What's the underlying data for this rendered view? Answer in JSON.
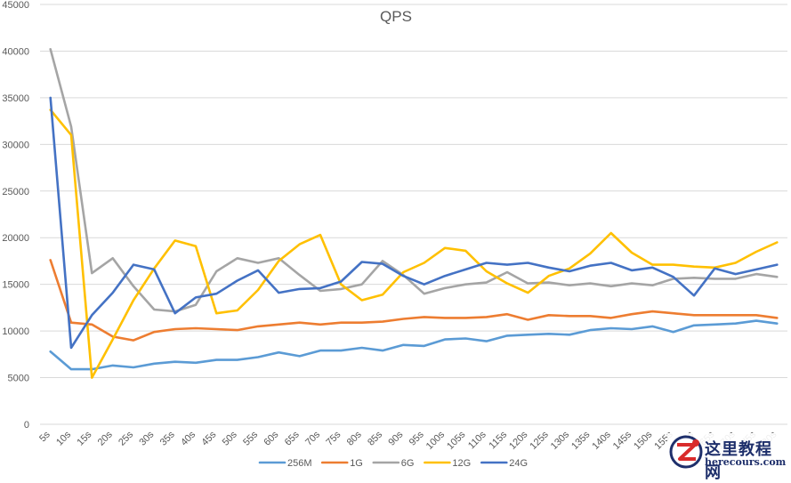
{
  "chart_data": {
    "type": "line",
    "title": "QPS",
    "xlabel": "",
    "ylabel": "",
    "ylim": [
      0,
      45000
    ],
    "yticks": [
      0,
      5000,
      10000,
      15000,
      20000,
      25000,
      30000,
      35000,
      40000,
      45000
    ],
    "ytick_labels": [
      "0",
      "5000",
      "10000",
      "15000",
      "20000",
      "25000",
      "30000",
      "35000",
      "40000",
      "45000"
    ],
    "categories": [
      "5s",
      "10s",
      "15s",
      "20s",
      "25s",
      "30s",
      "35s",
      "40s",
      "45s",
      "50s",
      "55s",
      "60s",
      "65s",
      "70s",
      "75s",
      "80s",
      "85s",
      "90s",
      "95s",
      "100s",
      "105s",
      "110s",
      "115s",
      "120s",
      "125s",
      "130s",
      "135s",
      "140s",
      "145s",
      "150s",
      "155s",
      "160s",
      "165s",
      "170s",
      "175s",
      "180s"
    ],
    "grid": "horizontal",
    "legend_position": "bottom",
    "series": [
      {
        "name": "256M",
        "color": "#5b9bd5",
        "values": [
          7800,
          5900,
          5900,
          6300,
          6100,
          6500,
          6700,
          6600,
          6900,
          6900,
          7200,
          7700,
          7300,
          7900,
          7900,
          8200,
          7900,
          8500,
          8400,
          9100,
          9200,
          8900,
          9500,
          9600,
          9700,
          9600,
          10100,
          10300,
          10200,
          10500,
          9900,
          10600,
          10700,
          10800,
          11100,
          10800
        ]
      },
      {
        "name": "1G",
        "color": "#ed7d31",
        "values": [
          17600,
          10900,
          10700,
          9400,
          9000,
          9900,
          10200,
          10300,
          10200,
          10100,
          10500,
          10700,
          10900,
          10700,
          10900,
          10900,
          11000,
          11300,
          11500,
          11400,
          11400,
          11500,
          11800,
          11200,
          11700,
          11600,
          11600,
          11400,
          11800,
          12100,
          11900,
          11700,
          11700,
          11700,
          11700,
          11400
        ]
      },
      {
        "name": "6G",
        "color": "#a5a5a5",
        "values": [
          40200,
          31900,
          16200,
          17800,
          14800,
          12300,
          12100,
          12800,
          16400,
          17800,
          17300,
          17800,
          16000,
          14300,
          14500,
          15000,
          17500,
          16000,
          14000,
          14600,
          15000,
          15200,
          16300,
          15100,
          15200,
          14900,
          15100,
          14800,
          15100,
          14900,
          15600,
          15700,
          15600,
          15600,
          16100,
          15800
        ]
      },
      {
        "name": "12G",
        "color": "#ffc000",
        "values": [
          33700,
          31000,
          5000,
          9100,
          13300,
          16700,
          19700,
          19100,
          11900,
          12200,
          14400,
          17500,
          19300,
          20300,
          15000,
          13300,
          13900,
          16300,
          17300,
          18900,
          18600,
          16400,
          15100,
          14100,
          15900,
          16700,
          18300,
          20500,
          18400,
          17100,
          17100,
          16900,
          16800,
          17300,
          18500,
          19500
        ]
      },
      {
        "name": "24G",
        "color": "#4472c4",
        "values": [
          35000,
          8200,
          11700,
          14100,
          17100,
          16600,
          11900,
          13600,
          14000,
          15400,
          16500,
          14100,
          14500,
          14600,
          15300,
          17400,
          17200,
          15900,
          15000,
          15900,
          16600,
          17300,
          17100,
          17300,
          16800,
          16400,
          17000,
          17300,
          16500,
          16800,
          15800,
          13800,
          16700,
          16100,
          16600,
          17100
        ]
      }
    ]
  },
  "watermark": {
    "title": "这里教程网",
    "site": "herecours.com"
  }
}
